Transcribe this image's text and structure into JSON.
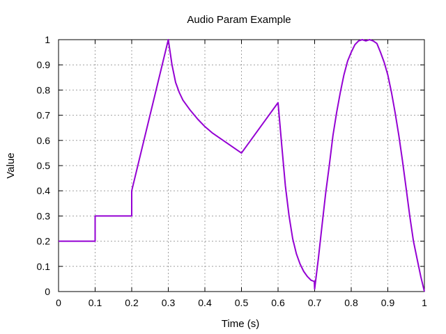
{
  "chart_data": {
    "type": "line",
    "title": "Audio Param Example",
    "xlabel": "Time (s)",
    "ylabel": "Value",
    "xlim": [
      0,
      1
    ],
    "ylim": [
      0,
      1
    ],
    "grid": true,
    "xticks": [
      "0",
      "0.1",
      "0.2",
      "0.3",
      "0.4",
      "0.5",
      "0.6",
      "0.7",
      "0.8",
      "0.9",
      "1"
    ],
    "yticks": [
      "0",
      "0.1",
      "0.2",
      "0.3",
      "0.4",
      "0.5",
      "0.6",
      "0.7",
      "0.8",
      "0.9",
      "1"
    ],
    "series": [
      {
        "color": "#9400d3",
        "x": [
          0,
          0.1,
          0.1,
          0.2,
          0.2,
          0.3,
          0.31,
          0.32,
          0.33,
          0.34,
          0.36,
          0.38,
          0.4,
          0.42,
          0.44,
          0.46,
          0.48,
          0.5,
          0.6,
          0.61,
          0.62,
          0.63,
          0.64,
          0.65,
          0.66,
          0.67,
          0.68,
          0.69,
          0.699,
          0.7,
          0.71,
          0.72,
          0.73,
          0.74,
          0.75,
          0.76,
          0.77,
          0.78,
          0.79,
          0.8,
          0.81,
          0.82,
          0.83,
          0.84,
          0.85,
          0.86,
          0.87,
          0.88,
          0.89,
          0.9,
          0.91,
          0.92,
          0.93,
          0.94,
          0.95,
          0.96,
          0.97,
          0.98,
          0.99,
          1
        ],
        "y": [
          0.2,
          0.2,
          0.3,
          0.3,
          0.4,
          1.0,
          0.9,
          0.83,
          0.79,
          0.76,
          0.72,
          0.685,
          0.655,
          0.63,
          0.61,
          0.59,
          0.57,
          0.55,
          0.75,
          0.58,
          0.42,
          0.3,
          0.21,
          0.15,
          0.11,
          0.08,
          0.06,
          0.045,
          0.04,
          0.01,
          0.13,
          0.26,
          0.39,
          0.5,
          0.62,
          0.71,
          0.79,
          0.86,
          0.915,
          0.95,
          0.98,
          0.995,
          1.0,
          0.995,
          1.0,
          0.995,
          0.985,
          0.95,
          0.91,
          0.86,
          0.79,
          0.71,
          0.62,
          0.52,
          0.41,
          0.3,
          0.2,
          0.13,
          0.06,
          0.0
        ]
      }
    ]
  }
}
